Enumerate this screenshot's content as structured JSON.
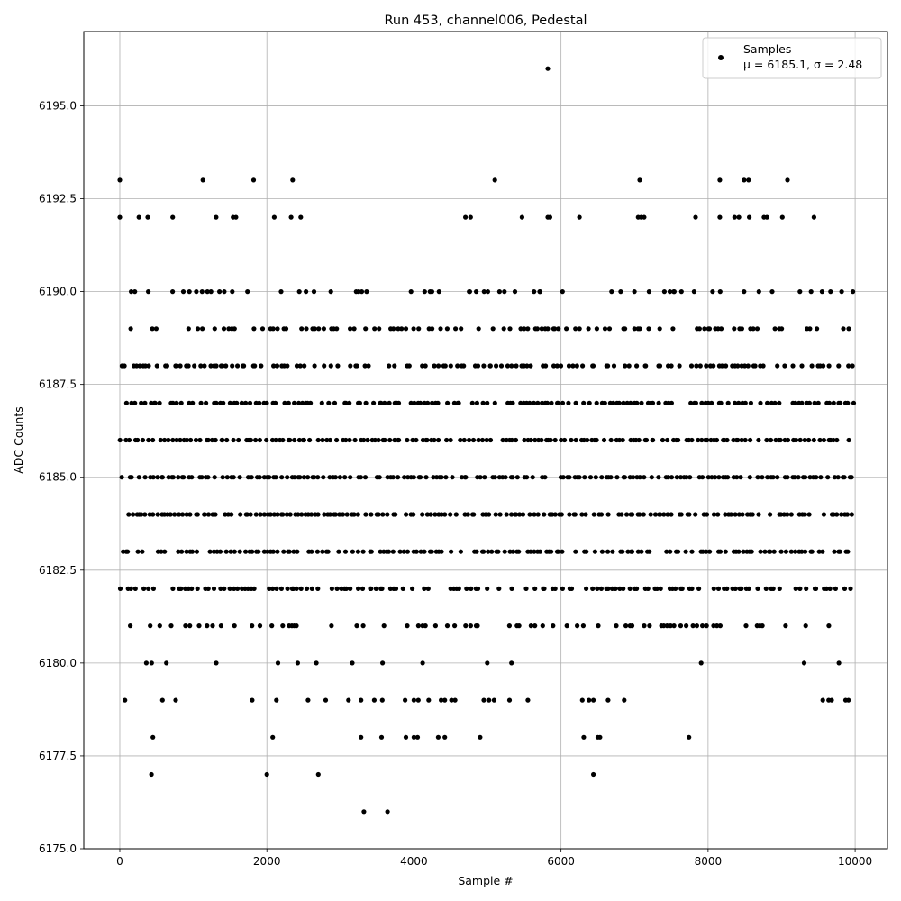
{
  "chart_data": {
    "type": "scatter",
    "title": "Run 453, channel006, Pedestal",
    "xlabel": "Sample #",
    "ylabel": "ADC Counts",
    "xlim": [
      -490,
      10440
    ],
    "ylim": [
      6175.0,
      6197.0
    ],
    "x_ticks": [
      0,
      2000,
      4000,
      6000,
      8000,
      10000
    ],
    "x_tick_labels": [
      "0",
      "2000",
      "4000",
      "6000",
      "8000",
      "10000"
    ],
    "y_ticks": [
      6175.0,
      6177.5,
      6180.0,
      6182.5,
      6185.0,
      6187.5,
      6190.0,
      6192.5,
      6195.0
    ],
    "y_tick_labels": [
      "6175.0",
      "6177.5",
      "6180.0",
      "6182.5",
      "6185.0",
      "6187.5",
      "6190.0",
      "6192.5",
      "6195.0"
    ],
    "grid": true,
    "legend_position": "top-right",
    "series": [
      {
        "name": "Samples",
        "color": "#000000",
        "marker": "circle",
        "stats_label": "μ = 6185.1, σ = 2.48",
        "n_samples": 10000,
        "dense_levels": [
          6180,
          6181,
          6182,
          6183,
          6184,
          6185,
          6186,
          6187,
          6188,
          6189,
          6190
        ],
        "points": [
          [
            0,
            6193
          ],
          [
            1130,
            6193
          ],
          [
            1820,
            6193
          ],
          [
            2350,
            6193
          ],
          [
            5100,
            6193
          ],
          [
            7070,
            6193
          ],
          [
            8160,
            6193
          ],
          [
            8490,
            6193
          ],
          [
            8550,
            6193
          ],
          [
            9080,
            6193
          ],
          [
            0,
            6192
          ],
          [
            260,
            6192
          ],
          [
            380,
            6192
          ],
          [
            720,
            6192
          ],
          [
            1310,
            6192
          ],
          [
            1540,
            6192
          ],
          [
            1580,
            6192
          ],
          [
            2100,
            6192
          ],
          [
            2330,
            6192
          ],
          [
            2460,
            6192
          ],
          [
            4700,
            6192
          ],
          [
            4770,
            6192
          ],
          [
            5470,
            6192
          ],
          [
            5820,
            6192
          ],
          [
            5850,
            6192
          ],
          [
            6250,
            6192
          ],
          [
            7050,
            6192
          ],
          [
            7090,
            6192
          ],
          [
            7130,
            6192
          ],
          [
            7830,
            6192
          ],
          [
            8160,
            6192
          ],
          [
            8360,
            6192
          ],
          [
            8420,
            6192
          ],
          [
            8560,
            6192
          ],
          [
            8760,
            6192
          ],
          [
            8800,
            6192
          ],
          [
            9010,
            6192
          ],
          [
            9440,
            6192
          ],
          [
            5820,
            6196
          ],
          [
            70,
            6179
          ],
          [
            580,
            6179
          ],
          [
            760,
            6179
          ],
          [
            1800,
            6179
          ],
          [
            2130,
            6179
          ],
          [
            2560,
            6179
          ],
          [
            2800,
            6179
          ],
          [
            3110,
            6179
          ],
          [
            3280,
            6179
          ],
          [
            3460,
            6179
          ],
          [
            3570,
            6179
          ],
          [
            3880,
            6179
          ],
          [
            4000,
            6179
          ],
          [
            4060,
            6179
          ],
          [
            4200,
            6179
          ],
          [
            4370,
            6179
          ],
          [
            4420,
            6179
          ],
          [
            4510,
            6179
          ],
          [
            4560,
            6179
          ],
          [
            4950,
            6179
          ],
          [
            5020,
            6179
          ],
          [
            5090,
            6179
          ],
          [
            5300,
            6179
          ],
          [
            5550,
            6179
          ],
          [
            6290,
            6179
          ],
          [
            6380,
            6179
          ],
          [
            6440,
            6179
          ],
          [
            6640,
            6179
          ],
          [
            6860,
            6179
          ],
          [
            9560,
            6179
          ],
          [
            9640,
            6179
          ],
          [
            9680,
            6179
          ],
          [
            9870,
            6179
          ],
          [
            9910,
            6179
          ],
          [
            450,
            6178
          ],
          [
            2080,
            6178
          ],
          [
            3280,
            6178
          ],
          [
            3560,
            6178
          ],
          [
            3890,
            6178
          ],
          [
            4000,
            6178
          ],
          [
            4050,
            6178
          ],
          [
            4330,
            6178
          ],
          [
            4420,
            6178
          ],
          [
            4900,
            6178
          ],
          [
            6310,
            6178
          ],
          [
            6500,
            6178
          ],
          [
            6530,
            6178
          ],
          [
            7740,
            6178
          ],
          [
            430,
            6177
          ],
          [
            2000,
            6177
          ],
          [
            2700,
            6177
          ],
          [
            6440,
            6177
          ],
          [
            3320,
            6176
          ],
          [
            3640,
            6176
          ]
        ]
      }
    ]
  }
}
